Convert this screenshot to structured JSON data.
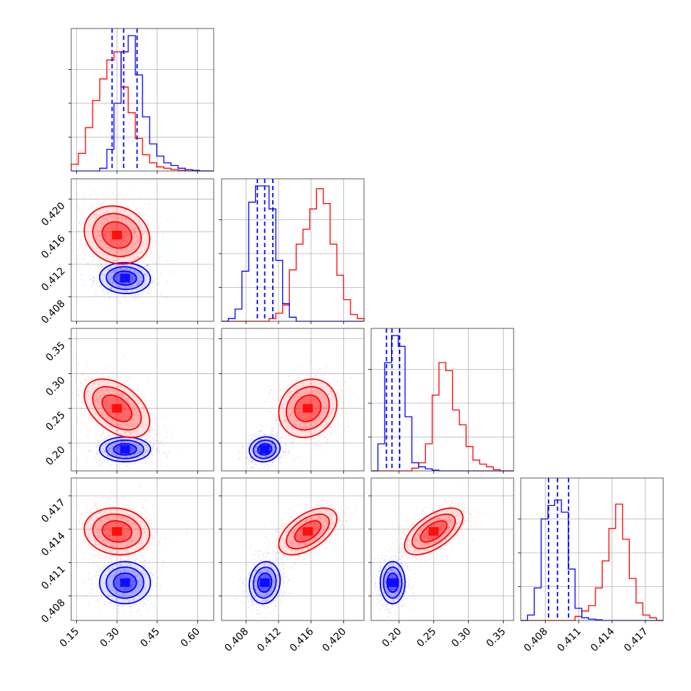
{
  "colors": {
    "red": "#ff0000",
    "blue": "#0000ff"
  },
  "chart_data": {
    "type": "corner",
    "grid": true,
    "series": [
      {
        "color": "#ff0000"
      },
      {
        "color": "#0000ff"
      }
    ],
    "params": [
      {
        "range": [
          0.13,
          0.66
        ],
        "ticks": [
          0.15,
          0.3,
          0.45,
          0.6
        ],
        "tick_labels": [
          "0.15",
          "0.30",
          "0.45",
          "0.60"
        ],
        "hist_red": [
          0.05,
          0.13,
          0.32,
          0.52,
          0.68,
          0.82,
          0.88,
          0.62,
          0.43,
          0.24,
          0.12,
          0.06,
          0.03,
          0.02,
          0.01,
          0.005,
          0,
          0,
          0,
          0
        ],
        "hist_blue": [
          0,
          0,
          0,
          0,
          0.02,
          0.16,
          0.5,
          0.88,
          1.0,
          0.71,
          0.4,
          0.2,
          0.11,
          0.06,
          0.04,
          0.02,
          0.01,
          0.005,
          0,
          0
        ],
        "quantiles_blue": [
          0.282,
          0.325,
          0.375
        ]
      },
      {
        "range": [
          0.405,
          0.4225
        ],
        "ticks": [
          0.408,
          0.412,
          0.416,
          0.42
        ],
        "tick_labels": [
          "0.408",
          "0.412",
          "0.416",
          "0.420"
        ],
        "hist_red": [
          0,
          0,
          0,
          0,
          0,
          0,
          0,
          0.02,
          0.06,
          0.12,
          0.38,
          0.57,
          0.68,
          0.83,
          0.98,
          0.87,
          0.57,
          0.34,
          0.16,
          0.05,
          0.02
        ],
        "hist_blue": [
          0,
          0.02,
          0.09,
          0.37,
          0.88,
          1.0,
          1.0,
          0.83,
          0.45,
          0.13,
          0.03,
          0,
          0,
          0,
          0,
          0,
          0,
          0,
          0,
          0,
          0
        ],
        "quantiles_blue": [
          0.4094,
          0.4103,
          0.4113
        ]
      },
      {
        "range": [
          0.16,
          0.365
        ],
        "ticks": [
          0.2,
          0.25,
          0.3,
          0.35
        ],
        "tick_labels": [
          "0.20",
          "0.25",
          "0.30",
          "0.35"
        ],
        "hist_red": [
          0,
          0,
          0,
          0,
          0,
          0,
          0.02,
          0.06,
          0.2,
          0.56,
          0.8,
          0.74,
          0.45,
          0.34,
          0.18,
          0.08,
          0.05,
          0.03,
          0.01,
          0,
          0
        ],
        "hist_blue": [
          0,
          0.2,
          0.8,
          1.0,
          0.92,
          0.4,
          0.06,
          0.03,
          0.015,
          0.005,
          0,
          0,
          0,
          0,
          0,
          0,
          0,
          0,
          0,
          0,
          0
        ],
        "quantiles_blue": [
          0.182,
          0.19,
          0.201
        ]
      },
      {
        "range": [
          0.4058,
          0.4186
        ],
        "ticks": [
          0.408,
          0.411,
          0.414,
          0.417
        ],
        "tick_labels": [
          "0.408",
          "0.411",
          "0.414",
          "0.417"
        ],
        "hist_red": [
          0,
          0,
          0,
          0,
          0,
          0,
          0,
          0,
          0.03,
          0.07,
          0.11,
          0.24,
          0.44,
          0.68,
          0.86,
          0.6,
          0.31,
          0.13,
          0.04,
          0.02,
          0
        ],
        "hist_blue": [
          0,
          0.04,
          0.24,
          0.75,
          0.85,
          0.89,
          0.8,
          0.38,
          0.09,
          0.02,
          0.01,
          0.005,
          0,
          0,
          0,
          0,
          0,
          0,
          0,
          0,
          0
        ],
        "quantiles_blue": [
          0.4083,
          0.4091,
          0.4101
        ]
      }
    ],
    "posterior": {
      "red": {
        "mean": [
          0.3,
          0.4156,
          0.25,
          0.4138
        ],
        "sd": [
          0.058,
          0.0017,
          0.02,
          0.001
        ]
      },
      "blue": {
        "mean": [
          0.33,
          0.4103,
          0.191,
          0.4092
        ],
        "sd": [
          0.045,
          0.0009,
          0.0085,
          0.0009
        ]
      }
    }
  }
}
